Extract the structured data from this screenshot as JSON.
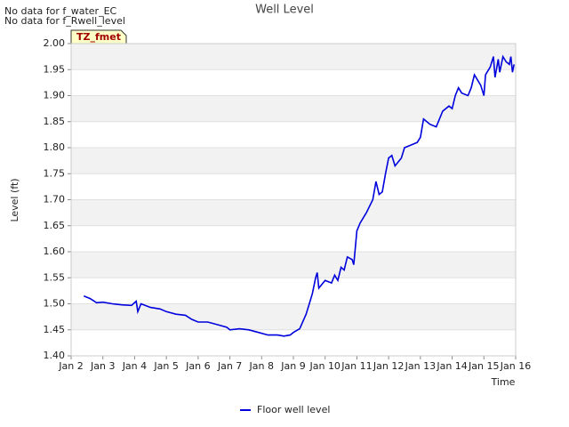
{
  "chart_data": {
    "type": "line",
    "title": "Well Level",
    "no_data_messages": [
      "No data for f_water_EC",
      "No data for f_Rwell_level"
    ],
    "badge": "TZ_fmet",
    "ylabel": "Level (ft)",
    "xlabel": "Time",
    "xlim": [
      2,
      16
    ],
    "xticks": [
      {
        "value": 2,
        "label": "Jan 2"
      },
      {
        "value": 3,
        "label": "Jan 3"
      },
      {
        "value": 4,
        "label": "Jan 4"
      },
      {
        "value": 5,
        "label": "Jan 5"
      },
      {
        "value": 6,
        "label": "Jan 6"
      },
      {
        "value": 7,
        "label": "Jan 7"
      },
      {
        "value": 8,
        "label": "Jan 8"
      },
      {
        "value": 9,
        "label": "Jan 9"
      },
      {
        "value": 10,
        "label": "Jan 10"
      },
      {
        "value": 11,
        "label": "Jan 11"
      },
      {
        "value": 12,
        "label": "Jan 12"
      },
      {
        "value": 13,
        "label": "Jan 13"
      },
      {
        "value": 14,
        "label": "Jan 14"
      },
      {
        "value": 15,
        "label": "Jan 15"
      },
      {
        "value": 16,
        "label": "Jan 16"
      }
    ],
    "ylim": [
      1.4,
      2.0
    ],
    "yticks": [
      {
        "value": 1.4,
        "label": "1.40"
      },
      1.45,
      {
        "value": 1.5,
        "label": "1.50"
      },
      1.55,
      {
        "value": 1.6,
        "label": "1.60"
      },
      1.65,
      {
        "value": 1.7,
        "label": "1.70"
      },
      1.75,
      {
        "value": 1.8,
        "label": "1.80"
      },
      1.85,
      {
        "value": 1.9,
        "label": "1.90"
      },
      1.95,
      {
        "value": 2.0,
        "label": "2.00"
      }
    ],
    "grid": true,
    "legend": "bottom",
    "x": [
      2.4,
      2.6,
      2.8,
      3.0,
      3.3,
      3.6,
      3.9,
      4.05,
      4.1,
      4.2,
      4.5,
      4.8,
      5.0,
      5.3,
      5.6,
      5.8,
      6.0,
      6.3,
      6.6,
      6.9,
      7.0,
      7.3,
      7.6,
      7.9,
      8.2,
      8.5,
      8.7,
      8.9,
      9.0,
      9.2,
      9.4,
      9.5,
      9.6,
      9.7,
      9.75,
      9.8,
      10.0,
      10.2,
      10.3,
      10.4,
      10.5,
      10.6,
      10.7,
      10.85,
      10.9,
      11.0,
      11.1,
      11.3,
      11.5,
      11.6,
      11.7,
      11.8,
      11.9,
      12.0,
      12.1,
      12.2,
      12.4,
      12.5,
      12.7,
      12.9,
      13.0,
      13.1,
      13.3,
      13.5,
      13.7,
      13.9,
      14.0,
      14.1,
      14.2,
      14.3,
      14.5,
      14.6,
      14.7,
      14.9,
      15.0,
      15.05,
      15.2,
      15.3,
      15.35,
      15.45,
      15.5,
      15.6,
      15.7,
      15.8,
      15.85,
      15.9,
      15.95
    ],
    "series": [
      {
        "name": "Floor well level",
        "color": "#0000dd",
        "values": [
          1.515,
          1.51,
          1.502,
          1.503,
          1.5,
          1.498,
          1.497,
          1.505,
          1.485,
          1.5,
          1.493,
          1.49,
          1.485,
          1.48,
          1.478,
          1.47,
          1.465,
          1.465,
          1.46,
          1.455,
          1.45,
          1.452,
          1.45,
          1.445,
          1.44,
          1.44,
          1.438,
          1.44,
          1.445,
          1.452,
          1.48,
          1.5,
          1.52,
          1.55,
          1.56,
          1.53,
          1.545,
          1.54,
          1.555,
          1.545,
          1.57,
          1.565,
          1.59,
          1.585,
          1.575,
          1.64,
          1.655,
          1.675,
          1.7,
          1.735,
          1.71,
          1.715,
          1.75,
          1.78,
          1.785,
          1.765,
          1.78,
          1.8,
          1.805,
          1.81,
          1.82,
          1.855,
          1.845,
          1.84,
          1.87,
          1.88,
          1.875,
          1.9,
          1.915,
          1.905,
          1.9,
          1.915,
          1.94,
          1.92,
          1.9,
          1.94,
          1.955,
          1.975,
          1.935,
          1.97,
          1.945,
          1.975,
          1.965,
          1.96,
          1.975,
          1.945,
          1.96
        ]
      }
    ]
  }
}
